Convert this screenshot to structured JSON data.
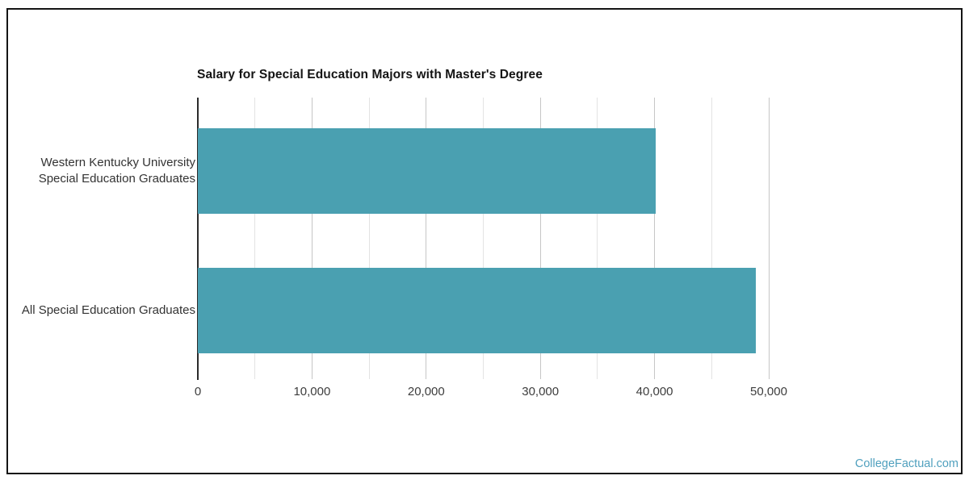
{
  "page": {
    "background": "#ffffff",
    "border_color": "#141414"
  },
  "chart_data": {
    "type": "bar",
    "orientation": "horizontal",
    "title": "Salary for Special Education Majors with Master's Degree",
    "categories": [
      "Western Kentucky University Special Education Graduates",
      "All Special Education Graduates"
    ],
    "category_lines": [
      [
        "Western Kentucky University",
        "Special Education Graduates"
      ],
      [
        "All Special Education Graduates"
      ]
    ],
    "values": [
      40100,
      48900
    ],
    "xlim": [
      0,
      54000
    ],
    "x_major_ticks": [
      0,
      10000,
      20000,
      30000,
      40000,
      50000
    ],
    "x_tick_labels": [
      "0",
      "10,000",
      "20,000",
      "30,000",
      "40,000",
      "50,000"
    ],
    "x_minor_step": 5000,
    "grid": "vertical-minor-and-major",
    "legend": "none",
    "bar_color": "#4AA0B1",
    "axis_line_color": "#2b2b2b",
    "major_grid_color": "#c6c6c6",
    "minor_grid_color": "#e3e3e3"
  },
  "footer": {
    "brand": "CollegeFactual.com",
    "color": "#50A0BE"
  }
}
